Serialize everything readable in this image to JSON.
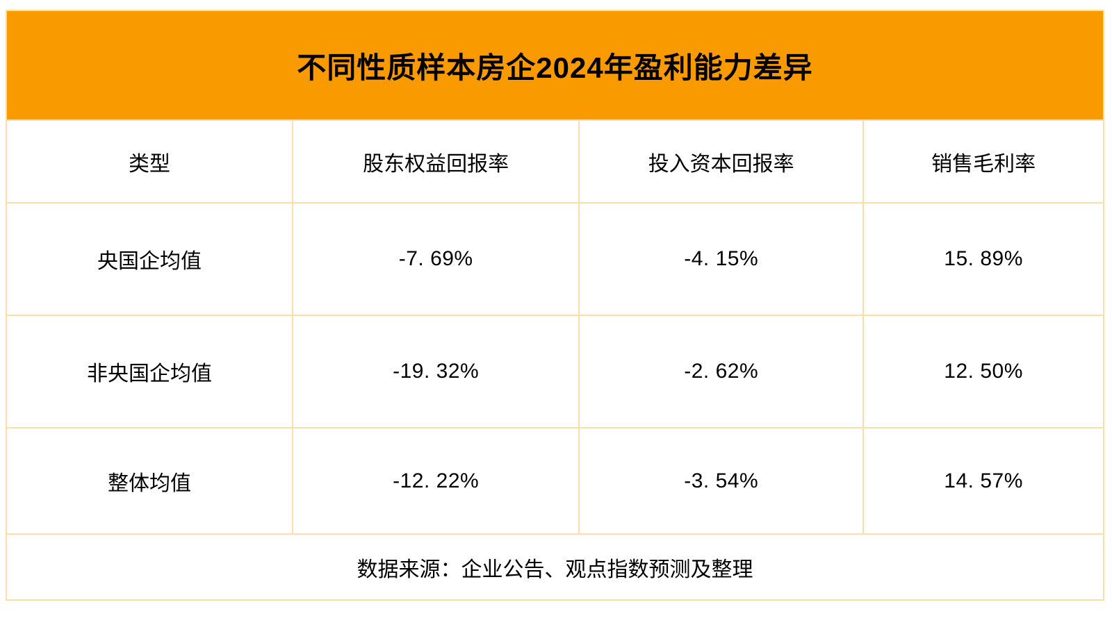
{
  "table": {
    "title": "不同性质样本房企2024年盈利能力差异",
    "columns": [
      "类型",
      "股东权益回报率",
      "投入资本回报率",
      "销售毛利率"
    ],
    "rows": [
      {
        "cells": [
          "央国企均值",
          "-7. 69%",
          "-4. 15%",
          "15. 89%"
        ]
      },
      {
        "cells": [
          "非央国企均值",
          "-19. 32%",
          "-2. 62%",
          "12. 50%"
        ]
      },
      {
        "cells": [
          "整体均值",
          "-12. 22%",
          "-3. 54%",
          "14. 57%"
        ]
      }
    ],
    "source_note": "数据来源：企业公告、观点指数预测及整理"
  },
  "colors": {
    "banner_background": "#F99B00",
    "grid_border": "#FBDFA6",
    "text": "#000000",
    "page_background": "#FFFFFF"
  },
  "chart_data": {
    "type": "table",
    "title": "不同性质样本房企2024年盈利能力差异",
    "columns": [
      "类型",
      "股东权益回报率",
      "投入资本回报率",
      "销售毛利率"
    ],
    "rows": [
      [
        "央国企均值",
        -7.69,
        -4.15,
        15.89
      ],
      [
        "非央国企均值",
        -19.32,
        -2.62,
        12.5
      ],
      [
        "整体均值",
        -12.22,
        -3.54,
        14.57
      ]
    ],
    "unit": "%",
    "source": "数据来源：企业公告、观点指数预测及整理",
    "layout_hints": {
      "title_banner": "orange, top, spans all columns",
      "source_row": "bottom, spans all columns",
      "grid": "on"
    }
  }
}
